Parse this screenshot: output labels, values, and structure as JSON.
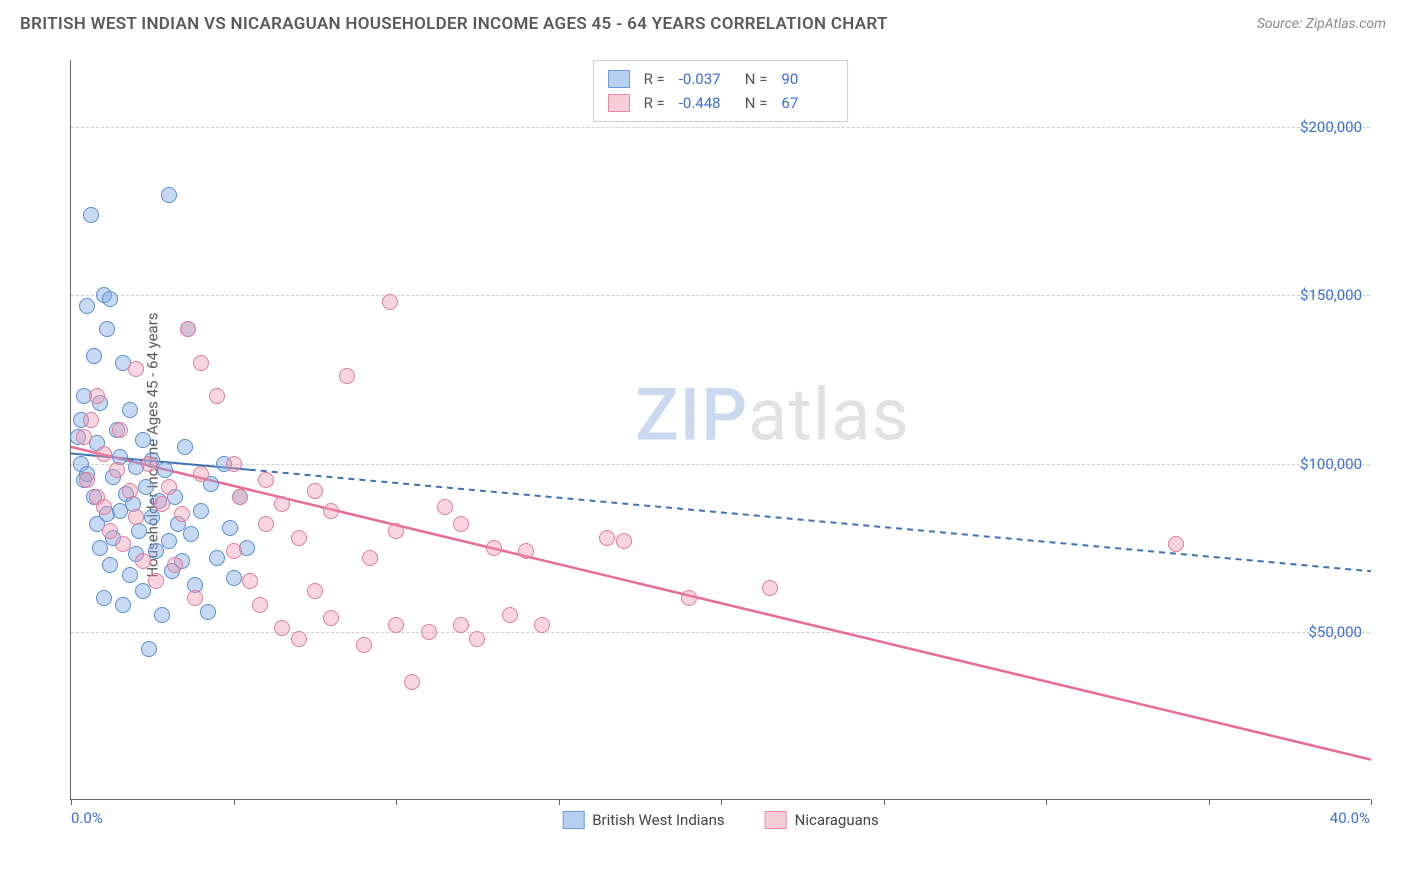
{
  "title": "BRITISH WEST INDIAN VS NICARAGUAN HOUSEHOLDER INCOME AGES 45 - 64 YEARS CORRELATION CHART",
  "source": "Source: ZipAtlas.com",
  "watermark": {
    "a": "ZIP",
    "b": "atlas"
  },
  "chart": {
    "type": "scatter",
    "y_axis_label": "Householder Income Ages 45 - 64 years",
    "xlim": [
      0,
      40
    ],
    "ylim": [
      0,
      220000
    ],
    "x_min_label": "0.0%",
    "x_max_label": "40.0%",
    "y_ticks": [
      50000,
      100000,
      150000,
      200000
    ],
    "y_tick_labels": [
      "$50,000",
      "$100,000",
      "$150,000",
      "$200,000"
    ],
    "x_tick_positions": [
      0,
      5,
      10,
      15,
      20,
      25,
      30,
      35,
      40
    ],
    "grid_color": "#d0d0d0",
    "background_color": "#ffffff",
    "axis_color": "#666666",
    "label_color": "#3b6fd6",
    "series": [
      {
        "name": "British West Indians",
        "marker_color_fill": "rgba(133,172,229,0.45)",
        "marker_color_stroke": "#5a8fd0",
        "swatch_fill": "#b8d0ef",
        "swatch_stroke": "#6a9bd8",
        "marker_radius": 8,
        "r": "-0.037",
        "n": "90",
        "trend": {
          "x1": 0,
          "y1": 103000,
          "x2": 40,
          "y2": 68000,
          "stroke": "#3f72b5",
          "width": 2,
          "dash": "6,5",
          "solid_until_x": 5.5
        },
        "points": [
          [
            0.2,
            108000
          ],
          [
            0.3,
            100000
          ],
          [
            0.3,
            113000
          ],
          [
            0.4,
            95000
          ],
          [
            0.4,
            120000
          ],
          [
            0.5,
            97000
          ],
          [
            0.5,
            147000
          ],
          [
            0.6,
            174000
          ],
          [
            0.7,
            90000
          ],
          [
            0.7,
            132000
          ],
          [
            0.8,
            82000
          ],
          [
            0.8,
            106000
          ],
          [
            0.9,
            75000
          ],
          [
            0.9,
            118000
          ],
          [
            1.0,
            60000
          ],
          [
            1.0,
            150000
          ],
          [
            1.1,
            85000
          ],
          [
            1.1,
            140000
          ],
          [
            1.2,
            70000
          ],
          [
            1.2,
            149000
          ],
          [
            1.3,
            96000
          ],
          [
            1.3,
            78000
          ],
          [
            1.4,
            110000
          ],
          [
            1.5,
            86000
          ],
          [
            1.5,
            102000
          ],
          [
            1.6,
            58000
          ],
          [
            1.6,
            130000
          ],
          [
            1.7,
            91000
          ],
          [
            1.8,
            116000
          ],
          [
            1.8,
            67000
          ],
          [
            1.9,
            88000
          ],
          [
            2.0,
            73000
          ],
          [
            2.0,
            99000
          ],
          [
            2.1,
            80000
          ],
          [
            2.2,
            107000
          ],
          [
            2.2,
            62000
          ],
          [
            2.3,
            93000
          ],
          [
            2.4,
            45000
          ],
          [
            2.5,
            84000
          ],
          [
            2.5,
            101000
          ],
          [
            2.6,
            74000
          ],
          [
            2.7,
            89000
          ],
          [
            2.8,
            55000
          ],
          [
            2.9,
            98000
          ],
          [
            3.0,
            77000
          ],
          [
            3.0,
            180000
          ],
          [
            3.1,
            68000
          ],
          [
            3.2,
            90000
          ],
          [
            3.3,
            82000
          ],
          [
            3.4,
            71000
          ],
          [
            3.5,
            105000
          ],
          [
            3.6,
            140000
          ],
          [
            3.7,
            79000
          ],
          [
            3.8,
            64000
          ],
          [
            4.0,
            86000
          ],
          [
            4.2,
            56000
          ],
          [
            4.3,
            94000
          ],
          [
            4.5,
            72000
          ],
          [
            4.7,
            100000
          ],
          [
            4.9,
            81000
          ],
          [
            5.0,
            66000
          ],
          [
            5.2,
            90000
          ],
          [
            5.4,
            75000
          ]
        ]
      },
      {
        "name": "Nicaraguans",
        "marker_color_fill": "rgba(240,150,175,0.40)",
        "marker_color_stroke": "#e07d9d",
        "swatch_fill": "#f6cdd9",
        "swatch_stroke": "#e68aa8",
        "marker_radius": 8,
        "r": "-0.448",
        "n": "67",
        "trend": {
          "x1": 0,
          "y1": 105000,
          "x2": 40,
          "y2": 12000,
          "stroke": "#e86c95",
          "width": 2.5,
          "dash": "",
          "solid_until_x": 40
        },
        "points": [
          [
            0.4,
            108000
          ],
          [
            0.5,
            95000
          ],
          [
            0.6,
            113000
          ],
          [
            0.8,
            90000
          ],
          [
            0.8,
            120000
          ],
          [
            1.0,
            87000
          ],
          [
            1.0,
            103000
          ],
          [
            1.2,
            80000
          ],
          [
            1.4,
            98000
          ],
          [
            1.5,
            110000
          ],
          [
            1.6,
            76000
          ],
          [
            1.8,
            92000
          ],
          [
            2.0,
            84000
          ],
          [
            2.0,
            128000
          ],
          [
            2.2,
            71000
          ],
          [
            2.4,
            100000
          ],
          [
            2.6,
            65000
          ],
          [
            2.8,
            88000
          ],
          [
            3.0,
            93000
          ],
          [
            3.2,
            70000
          ],
          [
            3.4,
            85000
          ],
          [
            3.6,
            140000
          ],
          [
            3.8,
            60000
          ],
          [
            4.0,
            97000
          ],
          [
            4.0,
            130000
          ],
          [
            4.5,
            120000
          ],
          [
            5.0,
            74000
          ],
          [
            5.0,
            100000
          ],
          [
            5.2,
            90000
          ],
          [
            5.5,
            65000
          ],
          [
            5.8,
            58000
          ],
          [
            6.0,
            82000
          ],
          [
            6.0,
            95000
          ],
          [
            6.5,
            51000
          ],
          [
            6.5,
            88000
          ],
          [
            7.0,
            78000
          ],
          [
            7.0,
            48000
          ],
          [
            7.5,
            92000
          ],
          [
            7.5,
            62000
          ],
          [
            8.0,
            54000
          ],
          [
            8.0,
            86000
          ],
          [
            8.5,
            126000
          ],
          [
            9.0,
            46000
          ],
          [
            9.2,
            72000
          ],
          [
            9.8,
            148000
          ],
          [
            10.0,
            52000
          ],
          [
            10.0,
            80000
          ],
          [
            10.5,
            35000
          ],
          [
            11.0,
            50000
          ],
          [
            11.5,
            87000
          ],
          [
            12.0,
            82000
          ],
          [
            12.0,
            52000
          ],
          [
            12.5,
            48000
          ],
          [
            13.0,
            75000
          ],
          [
            13.5,
            55000
          ],
          [
            14.0,
            74000
          ],
          [
            14.5,
            52000
          ],
          [
            16.5,
            78000
          ],
          [
            17.0,
            77000
          ],
          [
            19.0,
            60000
          ],
          [
            21.5,
            63000
          ],
          [
            34.0,
            76000
          ]
        ]
      }
    ]
  },
  "legend_bottom": [
    {
      "label": "British West Indians",
      "fill": "#b8d0ef",
      "stroke": "#6a9bd8"
    },
    {
      "label": "Nicaraguans",
      "fill": "#f6cdd9",
      "stroke": "#e68aa8"
    }
  ]
}
